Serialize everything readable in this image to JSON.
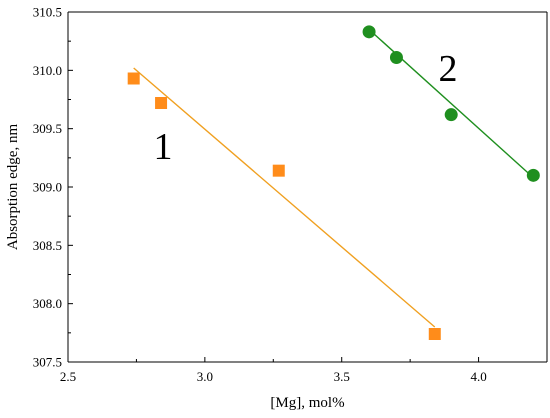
{
  "chart_data": {
    "type": "scatter",
    "xlabel": "[Mg], mol%",
    "ylabel": "Absorption edge, nm",
    "xlim": [
      2.5,
      4.25
    ],
    "ylim": [
      307.5,
      310.5
    ],
    "xticks": [
      "2.5",
      "3.0",
      "3.5",
      "4.0"
    ],
    "yticks": [
      "307.5",
      "308.0",
      "308.5",
      "309.0",
      "309.5",
      "310.0",
      "310.5"
    ],
    "grid": false,
    "legend": "none",
    "series": [
      {
        "label": "1",
        "marker": "square",
        "color": "#ff8c1a",
        "line_color": "#f0a020",
        "x": [
          2.74,
          2.84,
          3.27,
          3.84
        ],
        "y": [
          309.93,
          309.72,
          309.14,
          307.74
        ],
        "fit": [
          [
            2.74,
            310.02
          ],
          [
            3.84,
            307.8
          ]
        ]
      },
      {
        "label": "2",
        "marker": "circle",
        "color": "#1f8f1f",
        "line_color": "#1f8f1f",
        "x": [
          3.6,
          3.7,
          3.9,
          4.2
        ],
        "y": [
          310.33,
          310.11,
          309.62,
          309.1
        ],
        "fit": [
          [
            3.6,
            310.35
          ],
          [
            4.2,
            309.08
          ]
        ]
      }
    ]
  }
}
